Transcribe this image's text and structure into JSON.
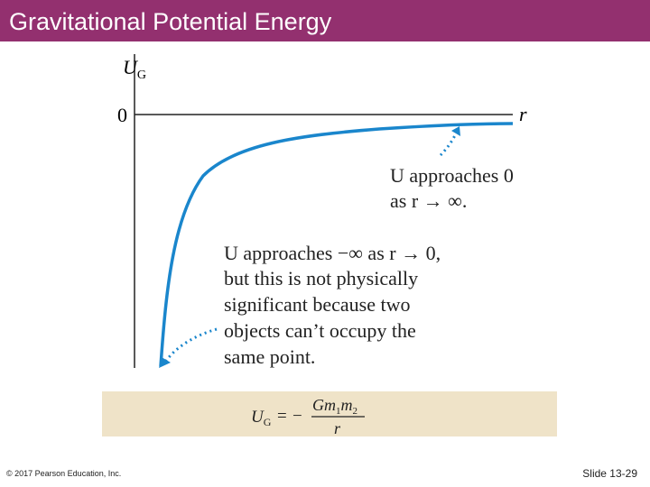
{
  "header": {
    "title": "Gravitational Potential Energy"
  },
  "graph": {
    "y_axis_label": {
      "symbol": "U",
      "subscript": "G"
    },
    "zero_label": "0",
    "x_axis_label": "r",
    "annotation_far": {
      "lines": [
        "U approaches 0",
        "as r → ∞."
      ]
    },
    "annotation_near": {
      "lines": [
        "U approaches −∞ as r → 0,",
        "but this is not physically",
        "significant because two",
        "objects can’t occupy the",
        "same point."
      ]
    }
  },
  "formula": {
    "lhs": {
      "symbol": "U",
      "subscript": "G"
    },
    "equals": "=",
    "sign": "−",
    "numerator": [
      {
        "symbol": "G"
      },
      {
        "symbol": "m",
        "subscript": "1"
      },
      {
        "symbol": "m",
        "subscript": "2"
      }
    ],
    "denominator": "r"
  },
  "footer": {
    "copyright": "© 2017 Pearson Education, Inc.",
    "slide_number": "Slide 13-29"
  }
}
